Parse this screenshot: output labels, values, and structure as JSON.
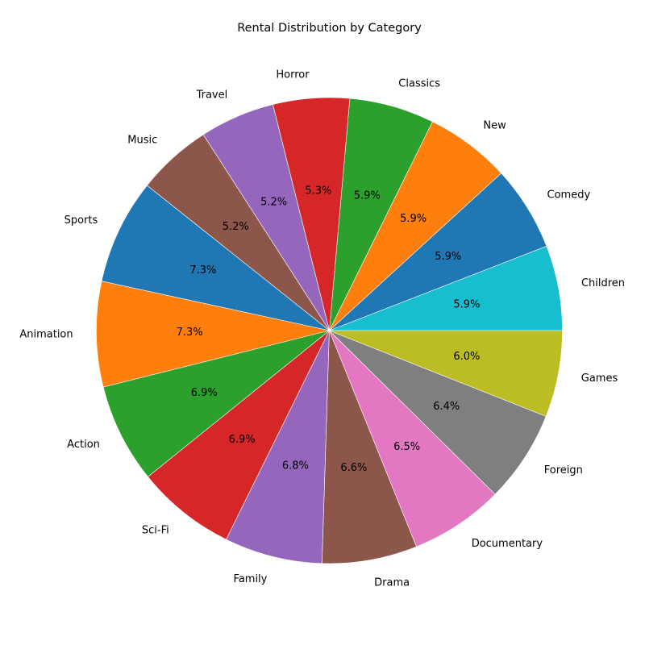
{
  "chart_data": {
    "type": "pie",
    "title": "Rental Distribution by Category",
    "start_angle_deg": 0,
    "direction": "counterclockwise",
    "slices": [
      {
        "label": "Children",
        "value": 5.9,
        "pct_label": "5.9%",
        "color": "#17becf"
      },
      {
        "label": "Comedy",
        "value": 5.9,
        "pct_label": "5.9%",
        "color": "#1f77b4"
      },
      {
        "label": "New",
        "value": 5.9,
        "pct_label": "5.9%",
        "color": "#ff7f0e"
      },
      {
        "label": "Classics",
        "value": 5.9,
        "pct_label": "5.9%",
        "color": "#2ca02c"
      },
      {
        "label": "Horror",
        "value": 5.3,
        "pct_label": "5.3%",
        "color": "#d62728"
      },
      {
        "label": "Travel",
        "value": 5.2,
        "pct_label": "5.2%",
        "color": "#9467bd"
      },
      {
        "label": "Music",
        "value": 5.2,
        "pct_label": "5.2%",
        "color": "#8c564b"
      },
      {
        "label": "Sports",
        "value": 7.3,
        "pct_label": "7.3%",
        "color": "#1f77b4"
      },
      {
        "label": "Animation",
        "value": 7.3,
        "pct_label": "7.3%",
        "color": "#ff7f0e"
      },
      {
        "label": "Action",
        "value": 6.9,
        "pct_label": "6.9%",
        "color": "#2ca02c"
      },
      {
        "label": "Sci-Fi",
        "value": 6.9,
        "pct_label": "6.9%",
        "color": "#d62728"
      },
      {
        "label": "Family",
        "value": 6.8,
        "pct_label": "6.8%",
        "color": "#9467bd"
      },
      {
        "label": "Drama",
        "value": 6.6,
        "pct_label": "6.6%",
        "color": "#8c564b"
      },
      {
        "label": "Documentary",
        "value": 6.5,
        "pct_label": "6.5%",
        "color": "#e377c2"
      },
      {
        "label": "Foreign",
        "value": 6.4,
        "pct_label": "6.4%",
        "color": "#7f7f7f"
      },
      {
        "label": "Games",
        "value": 6.0,
        "pct_label": "6.0%",
        "color": "#bcbd22"
      }
    ]
  }
}
